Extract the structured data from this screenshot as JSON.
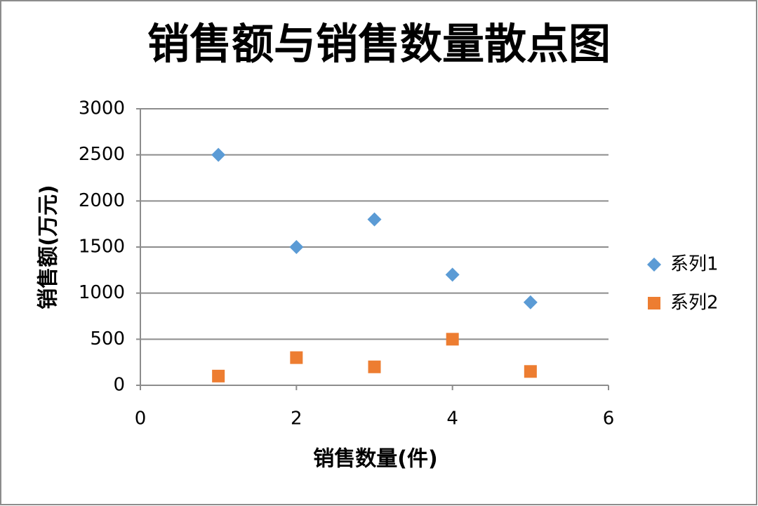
{
  "chart_data": {
    "type": "scatter",
    "title": "销售额与销售数量散点图",
    "x_label": "销售数量(件)",
    "y_label": "销售额(万元)",
    "x": [
      1,
      2,
      3,
      4,
      5
    ],
    "series": [
      {
        "name": "系列1",
        "color": "#5b9bd5",
        "marker": "diamond",
        "values": [
          2500,
          1500,
          1800,
          1200,
          900
        ]
      },
      {
        "name": "系列2",
        "color": "#ed7d31",
        "marker": "square",
        "values": [
          100,
          300,
          200,
          500,
          150
        ]
      }
    ],
    "xlim": [
      0,
      6
    ],
    "xticks": [
      0,
      2,
      4,
      6
    ],
    "ylim": [
      0,
      3000
    ],
    "yticks": [
      0,
      500,
      1000,
      1500,
      2000,
      2500,
      3000
    ],
    "grid": true,
    "legend": "right"
  }
}
